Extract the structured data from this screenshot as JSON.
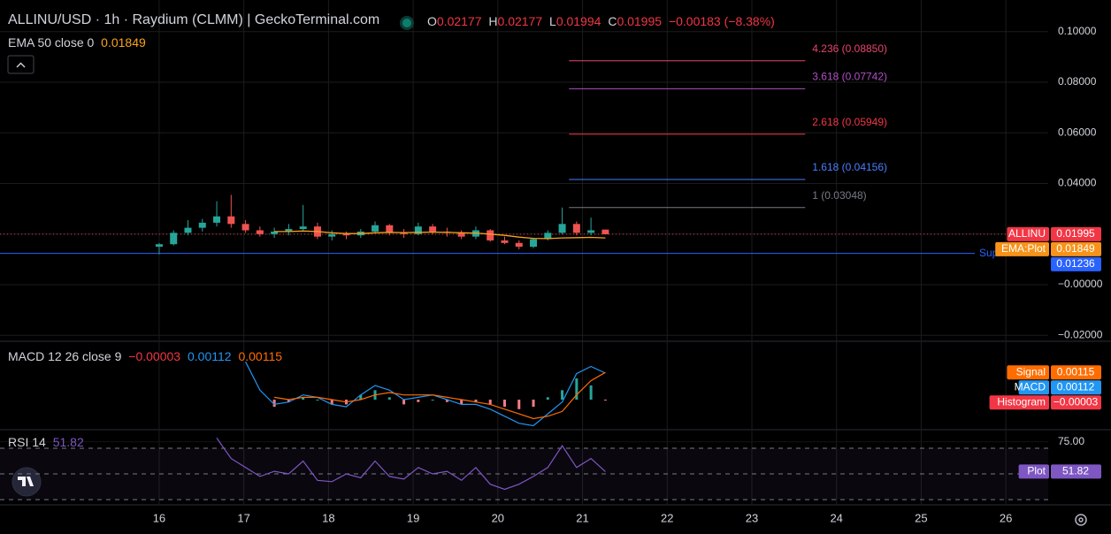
{
  "header": {
    "title": "ALLINU/USD · 1h · Raydium (CLMM) | GeckoTerminal.com",
    "ohlc": [
      {
        "key": "O",
        "value": "0.02177"
      },
      {
        "key": "H",
        "value": "0.02177"
      },
      {
        "key": "L",
        "value": "0.01994"
      },
      {
        "key": "C",
        "value": "0.01995"
      }
    ],
    "change": "−0.00183 (−8.38%)"
  },
  "chart_data": [
    {
      "type": "candlestick",
      "x": [
        16.0,
        16.17,
        16.34,
        16.51,
        16.68,
        16.85,
        17.02,
        17.19,
        17.36,
        17.53,
        17.7,
        17.87,
        18.04,
        18.21,
        18.38,
        18.55,
        18.72,
        18.89,
        19.06,
        19.23,
        19.4,
        19.57,
        19.74,
        19.91,
        20.08,
        20.25,
        20.42,
        20.59,
        20.76,
        20.93,
        21.1,
        21.27
      ],
      "open": [
        0.015,
        0.016,
        0.0205,
        0.0225,
        0.0245,
        0.027,
        0.024,
        0.0215,
        0.02,
        0.021,
        0.022,
        0.023,
        0.019,
        0.02,
        0.0195,
        0.021,
        0.0235,
        0.0205,
        0.02,
        0.023,
        0.021,
        0.0205,
        0.019,
        0.0215,
        0.0175,
        0.0165,
        0.015,
        0.018,
        0.0205,
        0.024,
        0.0205,
        0.02177
      ],
      "high": [
        0.0165,
        0.0215,
        0.0255,
        0.026,
        0.033,
        0.0355,
        0.0255,
        0.023,
        0.0225,
        0.024,
        0.0315,
        0.0245,
        0.0215,
        0.021,
        0.022,
        0.025,
        0.024,
        0.022,
        0.0245,
        0.024,
        0.0225,
        0.0215,
        0.023,
        0.022,
        0.019,
        0.0175,
        0.0185,
        0.0215,
        0.0305,
        0.025,
        0.0265,
        0.02177
      ],
      "low": [
        0.012,
        0.0155,
        0.0195,
        0.021,
        0.023,
        0.0225,
        0.0205,
        0.019,
        0.0185,
        0.0195,
        0.021,
        0.018,
        0.0175,
        0.018,
        0.0185,
        0.0205,
        0.0195,
        0.0185,
        0.0195,
        0.02,
        0.019,
        0.018,
        0.018,
        0.017,
        0.016,
        0.014,
        0.0145,
        0.0175,
        0.02,
        0.0195,
        0.0195,
        0.01994
      ],
      "close": [
        0.016,
        0.0205,
        0.0225,
        0.0245,
        0.027,
        0.024,
        0.0215,
        0.02,
        0.021,
        0.022,
        0.023,
        0.019,
        0.02,
        0.0195,
        0.021,
        0.0235,
        0.0205,
        0.02,
        0.023,
        0.021,
        0.0205,
        0.019,
        0.0215,
        0.0175,
        0.0165,
        0.015,
        0.018,
        0.0205,
        0.024,
        0.0205,
        0.0215,
        0.01995
      ],
      "up_color": "#26a69a",
      "down_color": "#ef5350",
      "overlays": [
        {
          "name": "EMA 50 close 0",
          "color": "#f7a21b",
          "last_label": "0.01849",
          "values": [
            null,
            null,
            null,
            null,
            null,
            null,
            null,
            null,
            0.021,
            0.021,
            0.0212,
            0.021,
            0.0205,
            0.0202,
            0.0202,
            0.0205,
            0.0207,
            0.0206,
            0.0207,
            0.0208,
            0.0207,
            0.0205,
            0.0204,
            0.02,
            0.0195,
            0.0188,
            0.0183,
            0.0182,
            0.0185,
            0.0186,
            0.0187,
            0.01849
          ]
        }
      ],
      "fib_range": [
        20.84,
        23.63
      ],
      "fib_levels": [
        {
          "value": 0.0885,
          "label": "4.236 (0.08850)",
          "color": "#e8446e"
        },
        {
          "value": 0.07742,
          "label": "3.618 (0.07742)",
          "color": "#b04fc4"
        },
        {
          "value": 0.05949,
          "label": "2.618 (0.05949)",
          "color": "#f23645"
        },
        {
          "value": 0.04156,
          "label": "1.618 (0.04156)",
          "color": "#4a7dff"
        },
        {
          "value": 0.03048,
          "label": "1 (0.03048)",
          "color": "#787b86"
        }
      ],
      "support": {
        "value": 0.01236,
        "label": "Sup",
        "value_label": "0.01236",
        "color": "#2962ff"
      },
      "price_tags": [
        {
          "name": "ALLINU",
          "value": 0.01995,
          "value_label": "0.01995",
          "color": "#f23645"
        },
        {
          "name": "EMA:Plot",
          "value": 0.01849,
          "value_label": "0.01849",
          "color": "#f7931a"
        }
      ],
      "xlim": [
        14.12,
        26.5
      ],
      "xticks": [
        16,
        17,
        18,
        19,
        20,
        21,
        22,
        23,
        24,
        25,
        26
      ],
      "ylim": [
        -0.022,
        0.1125
      ],
      "yticks": [
        {
          "value": 0.1,
          "label": "0.10000"
        },
        {
          "value": 0.08,
          "label": "0.08000"
        },
        {
          "value": 0.06,
          "label": "0.06000"
        },
        {
          "value": 0.04,
          "label": "0.04000"
        },
        {
          "value": 0.02,
          "label": "0.02000"
        },
        {
          "value": 0,
          "label": "−0.00000"
        },
        {
          "value": -0.02,
          "label": "−0.02000"
        }
      ],
      "grid": true
    },
    {
      "type": "macd",
      "title": "MACD 12 26 close 9",
      "x": [
        16.0,
        16.17,
        16.34,
        16.51,
        16.68,
        16.85,
        17.02,
        17.19,
        17.36,
        17.53,
        17.7,
        17.87,
        18.04,
        18.21,
        18.38,
        18.55,
        18.72,
        18.89,
        19.06,
        19.23,
        19.4,
        19.57,
        19.74,
        19.91,
        20.08,
        20.25,
        20.42,
        20.59,
        20.76,
        20.93,
        21.1,
        21.27
      ],
      "series": [
        {
          "name": "Histogram",
          "kind": "bar",
          "color": "#26a69a",
          "negative_color": "#f77c80",
          "last_label": "−0.00003",
          "values": [
            null,
            null,
            null,
            null,
            null,
            null,
            null,
            null,
            -0.0003,
            -0.0001,
            0.0001,
            0.0,
            -0.0002,
            -0.0002,
            0.0002,
            0.0004,
            0.0001,
            -0.0002,
            -0.0001,
            0.0,
            -0.0001,
            -0.0002,
            -0.0001,
            -0.0002,
            -0.0003,
            -0.0004,
            -0.0003,
            0.0001,
            0.0004,
            0.0009,
            0.0006,
            -3e-05
          ]
        },
        {
          "name": "MACD",
          "kind": "line",
          "color": "#2196f3",
          "last_label": "0.00112",
          "values": [
            null,
            null,
            null,
            null,
            null,
            null,
            0.0016,
            0.0004,
            -0.0002,
            -0.0001,
            0.0002,
            0.0001,
            -0.0002,
            -0.0003,
            0.0002,
            0.0006,
            0.0004,
            0.0,
            0.0001,
            0.0002,
            0.0,
            -0.0002,
            -0.0002,
            -0.0004,
            -0.0007,
            -0.001,
            -0.0011,
            -0.0006,
            -0.0001,
            0.0011,
            0.0014,
            0.00112
          ]
        },
        {
          "name": "Signal",
          "kind": "line",
          "color": "#ff6d00",
          "last_label": "0.00115",
          "values": [
            null,
            null,
            null,
            null,
            null,
            null,
            null,
            null,
            0.0001,
            0.0,
            0.0001,
            0.0001,
            0.0,
            -0.0001,
            0.0,
            0.0002,
            0.0003,
            0.0002,
            0.0002,
            0.0002,
            0.0001,
            0.0,
            -0.0001,
            -0.0002,
            -0.0004,
            -0.0006,
            -0.0008,
            -0.0007,
            -0.0005,
            0.0002,
            0.0008,
            0.00115
          ]
        }
      ],
      "ylim": [
        -0.00123,
        0.00239
      ]
    },
    {
      "type": "line",
      "title": "RSI 14",
      "x": [
        16.0,
        16.17,
        16.34,
        16.51,
        16.68,
        16.85,
        17.02,
        17.19,
        17.36,
        17.53,
        17.7,
        17.87,
        18.04,
        18.21,
        18.38,
        18.55,
        18.72,
        18.89,
        19.06,
        19.23,
        19.4,
        19.57,
        19.74,
        19.91,
        20.08,
        20.25,
        20.42,
        20.59,
        20.76,
        20.93,
        21.1,
        21.27
      ],
      "series": [
        {
          "name": "Plot",
          "color": "#7e57c2",
          "last_label": "51.82",
          "values": [
            null,
            null,
            null,
            null,
            78,
            62,
            55,
            48,
            52,
            50,
            60,
            45,
            44,
            50,
            47,
            60,
            48,
            46,
            55,
            50,
            52,
            45,
            55,
            42,
            38,
            42,
            48,
            55,
            72,
            55,
            62,
            51.82
          ]
        }
      ],
      "levels": [
        70,
        50,
        30
      ],
      "ylim": [
        26.6,
        83.8
      ],
      "yticks": [
        {
          "value": 75,
          "label": "75.00"
        }
      ],
      "grid": true
    }
  ]
}
